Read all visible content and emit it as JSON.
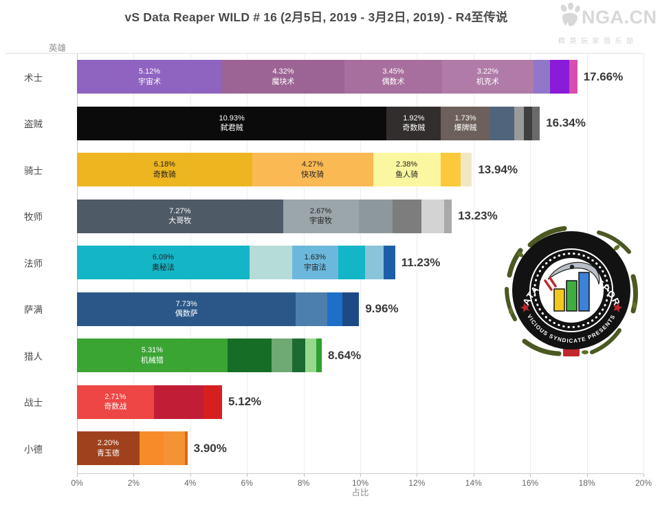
{
  "title": "vS Data Reaper WILD # 16 (2月5日, 2019 - 3月2日, 2019) - R4至传说",
  "watermark": {
    "name": "NGA.CN",
    "subtitle": "精英玩家俱乐部",
    "icon": "bear-paw-icon",
    "color": "#d8d8d8"
  },
  "badge": {
    "top_text": "DATA REAPER REPORT",
    "bottom_text": "VICIOUS SYNDICATE PRESENTS",
    "accent_red": "#c1272d",
    "bar_colors": [
      "#f2c81e",
      "#3fae3f",
      "#3b82d8"
    ]
  },
  "axis": {
    "y_title": "英雄",
    "x_title": "占比",
    "x_ticks": [
      "0%",
      "2%",
      "4%",
      "6%",
      "8%",
      "10%",
      "12%",
      "14%",
      "16%",
      "18%",
      "20%"
    ]
  },
  "chart_data": {
    "type": "bar",
    "stacked": true,
    "orientation": "horizontal",
    "title": "vS Data Reaper WILD # 16 (2月5日, 2019 - 3月2日, 2019) - R4至传说",
    "xlabel": "占比",
    "ylabel": "英雄",
    "xlim": [
      0,
      20
    ],
    "grid": true,
    "rows": [
      {
        "hero": "术士",
        "total": "17.66%",
        "total_value": 17.66,
        "segments": [
          {
            "value": 5.12,
            "label": "宇宙术",
            "color": "#8F63C0",
            "text_color": "#ffffff"
          },
          {
            "value": 4.32,
            "label": "魔块术",
            "color": "#9C6494",
            "text_color": "#ffffff"
          },
          {
            "value": 3.45,
            "label": "偶数术",
            "color": "#A76F9D",
            "text_color": "#ffffff"
          },
          {
            "value": 3.22,
            "label": "机克术",
            "color": "#B17BA7",
            "text_color": "#ffffff"
          },
          {
            "value": 0.6,
            "color": "#9177C9"
          },
          {
            "value": 0.68,
            "color": "#8A1BD8"
          },
          {
            "value": 0.27,
            "color": "#D94CB0"
          }
        ]
      },
      {
        "hero": "盗贼",
        "total": "16.34%",
        "total_value": 16.34,
        "segments": [
          {
            "value": 10.93,
            "label": "弑君贼",
            "color": "#0B0B0B",
            "text_color": "#ffffff"
          },
          {
            "value": 1.92,
            "label": "奇数贼",
            "color": "#322E2E",
            "text_color": "#ffffff"
          },
          {
            "value": 1.73,
            "label": "爆牌贼",
            "color": "#6D5F5B",
            "text_color": "#ffffff"
          },
          {
            "value": 0.85,
            "color": "#50647B"
          },
          {
            "value": 0.35,
            "color": "#9A9A9A"
          },
          {
            "value": 0.3,
            "color": "#3F3F3F"
          },
          {
            "value": 0.26,
            "color": "#6A6A6A"
          }
        ]
      },
      {
        "hero": "骑士",
        "total": "13.94%",
        "total_value": 13.94,
        "segments": [
          {
            "value": 6.18,
            "label": "奇数骑",
            "color": "#EDB51F",
            "text_color": "#222222"
          },
          {
            "value": 4.27,
            "label": "快攻骑",
            "color": "#FBB954",
            "text_color": "#222222"
          },
          {
            "value": 2.38,
            "label": "鱼人骑",
            "color": "#FBF7A0",
            "text_color": "#222222"
          },
          {
            "value": 0.72,
            "color": "#FCC93C"
          },
          {
            "value": 0.39,
            "color": "#F0E8C2"
          }
        ]
      },
      {
        "hero": "牧师",
        "total": "13.23%",
        "total_value": 13.23,
        "segments": [
          {
            "value": 7.27,
            "label": "大哥牧",
            "color": "#4E5A66",
            "text_color": "#ffffff"
          },
          {
            "value": 2.67,
            "label": "宇宙牧",
            "color": "#9BA6AA",
            "text_color": "#222222"
          },
          {
            "value": 1.21,
            "color": "#8C989C"
          },
          {
            "value": 1.0,
            "color": "#7D7D7D"
          },
          {
            "value": 0.82,
            "color": "#D3D3D3"
          },
          {
            "value": 0.26,
            "color": "#A9A9A9"
          }
        ]
      },
      {
        "hero": "法师",
        "total": "11.23%",
        "total_value": 11.23,
        "segments": [
          {
            "value": 6.09,
            "label": "奥秘法",
            "color": "#14B5C6",
            "text_color": "#222222"
          },
          {
            "value": 1.5,
            "color": "#B5DCD6"
          },
          {
            "value": 1.63,
            "label": "宇宙法",
            "color": "#6CB8DC",
            "text_color": "#222222"
          },
          {
            "value": 0.95,
            "color": "#14B5C6"
          },
          {
            "value": 0.66,
            "color": "#8AC4DA"
          },
          {
            "value": 0.4,
            "color": "#1C5FA8"
          }
        ]
      },
      {
        "hero": "萨满",
        "total": "9.96%",
        "total_value": 9.96,
        "segments": [
          {
            "value": 7.73,
            "label": "偶数萨",
            "color": "#2A5788",
            "text_color": "#ffffff"
          },
          {
            "value": 1.1,
            "color": "#4D7FAE"
          },
          {
            "value": 0.55,
            "color": "#1E6FC8"
          },
          {
            "value": 0.58,
            "color": "#1D4A85"
          }
        ]
      },
      {
        "hero": "猎人",
        "total": "8.64%",
        "total_value": 8.64,
        "segments": [
          {
            "value": 5.31,
            "label": "机械猎",
            "color": "#3BA534",
            "text_color": "#ffffff"
          },
          {
            "value": 1.55,
            "color": "#166E26"
          },
          {
            "value": 0.75,
            "color": "#6FA973"
          },
          {
            "value": 0.45,
            "color": "#1D6B33"
          },
          {
            "value": 0.38,
            "color": "#97D88F"
          },
          {
            "value": 0.2,
            "color": "#2FA02F"
          }
        ]
      },
      {
        "hero": "战士",
        "total": "5.12%",
        "total_value": 5.12,
        "segments": [
          {
            "value": 2.71,
            "label": "奇数战",
            "color": "#EE4545",
            "text_color": "#ffffff"
          },
          {
            "value": 1.75,
            "color": "#C11D36"
          },
          {
            "value": 0.66,
            "color": "#D62020"
          }
        ]
      },
      {
        "hero": "小德",
        "total": "3.90%",
        "total_value": 3.9,
        "segments": [
          {
            "value": 2.2,
            "label": "青玉德",
            "color": "#A0411D",
            "text_color": "#ffffff"
          },
          {
            "value": 0.85,
            "color": "#F78B28"
          },
          {
            "value": 0.75,
            "color": "#F49333"
          },
          {
            "value": 0.1,
            "color": "#D86A18"
          }
        ]
      }
    ]
  }
}
